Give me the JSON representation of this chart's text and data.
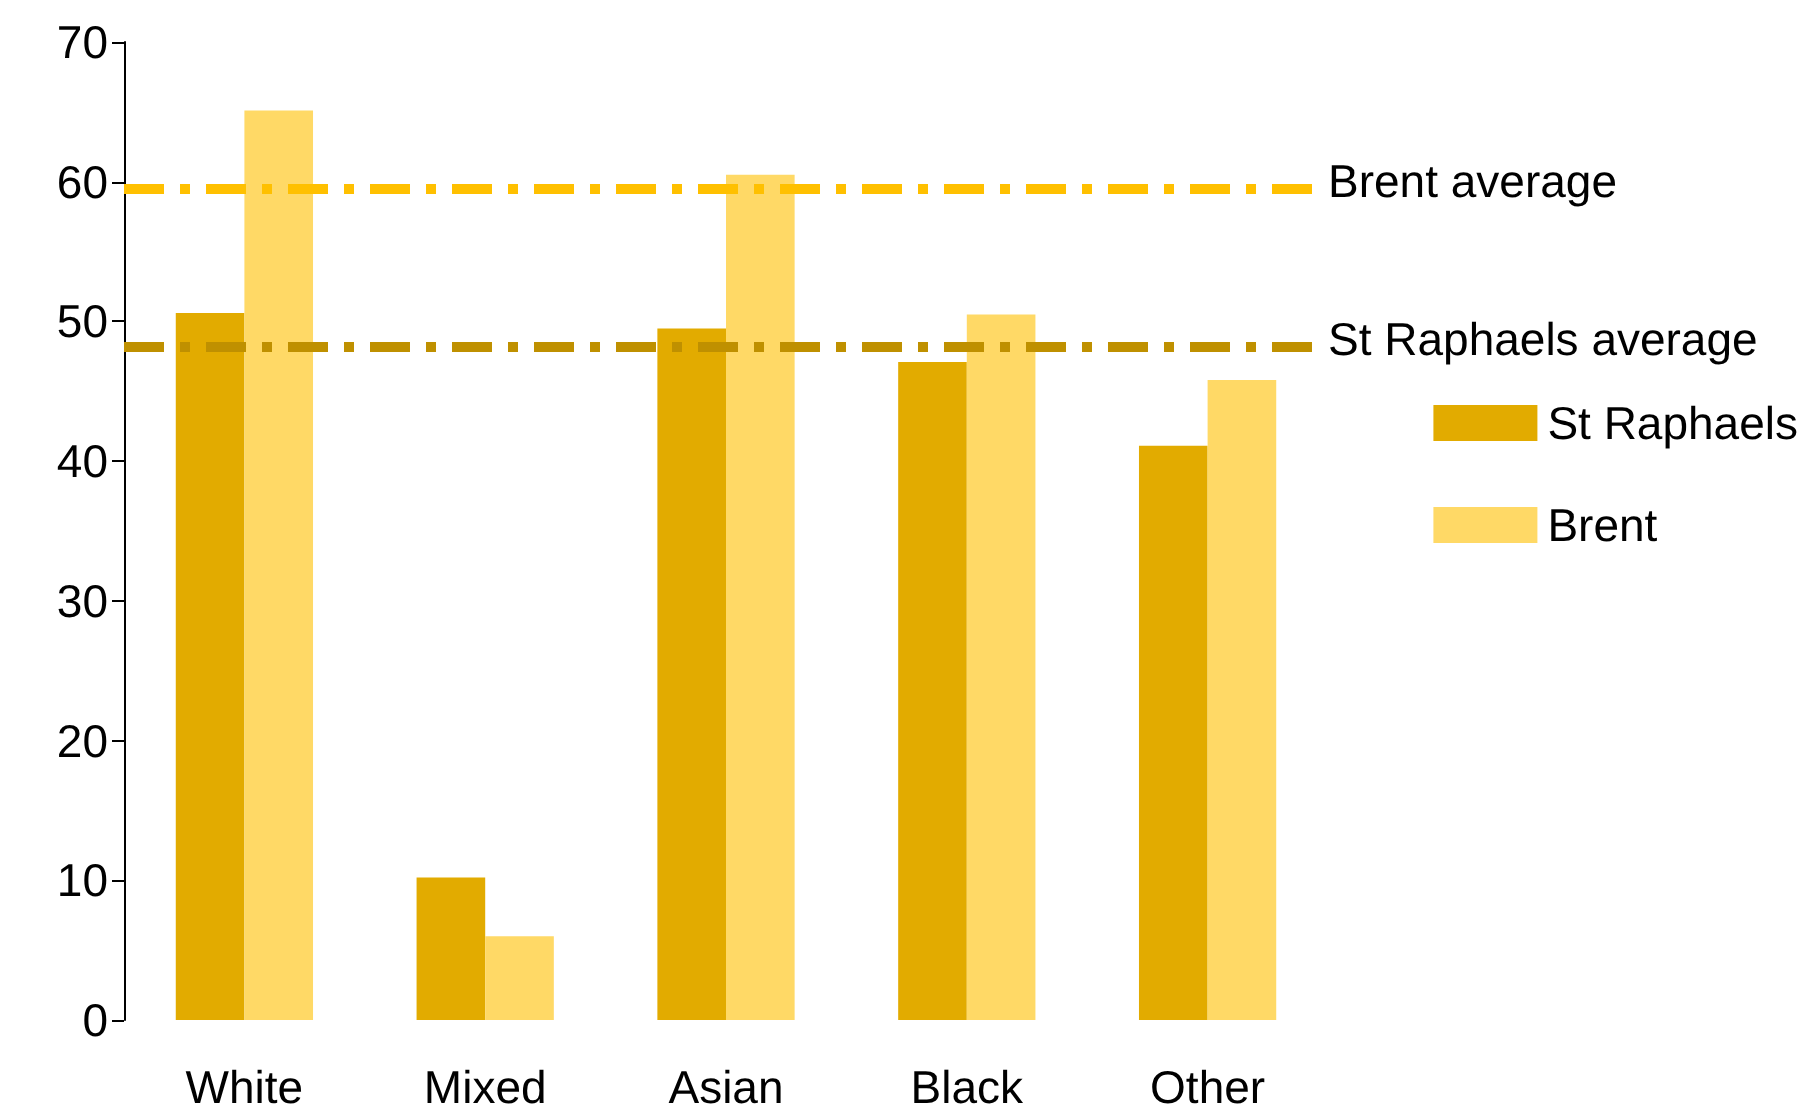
{
  "chart_data": {
    "type": "bar",
    "categories": [
      "White",
      "Mixed",
      "Asian",
      "Black",
      "Other"
    ],
    "series": [
      {
        "name": "St Raphaels",
        "color": "#e2ab00",
        "values": [
          50.6,
          10.2,
          49.5,
          47.1,
          41.1
        ]
      },
      {
        "name": "Brent",
        "color": "#ffd966",
        "values": [
          65.1,
          6.0,
          60.5,
          50.5,
          45.8
        ]
      }
    ],
    "ylim": [
      0,
      70
    ],
    "yticks": [
      0,
      10,
      20,
      30,
      40,
      50,
      60,
      70
    ],
    "grid": false,
    "legend": "right",
    "ref_lines": [
      {
        "axis": "y",
        "value": 59.5,
        "label": "Brent average",
        "color": "#ffc000",
        "line_style": "dashed"
      },
      {
        "axis": "y",
        "value": 48.2,
        "label": "St Raphaels average",
        "color": "#bf9000",
        "line_style": "dashed"
      }
    ]
  }
}
